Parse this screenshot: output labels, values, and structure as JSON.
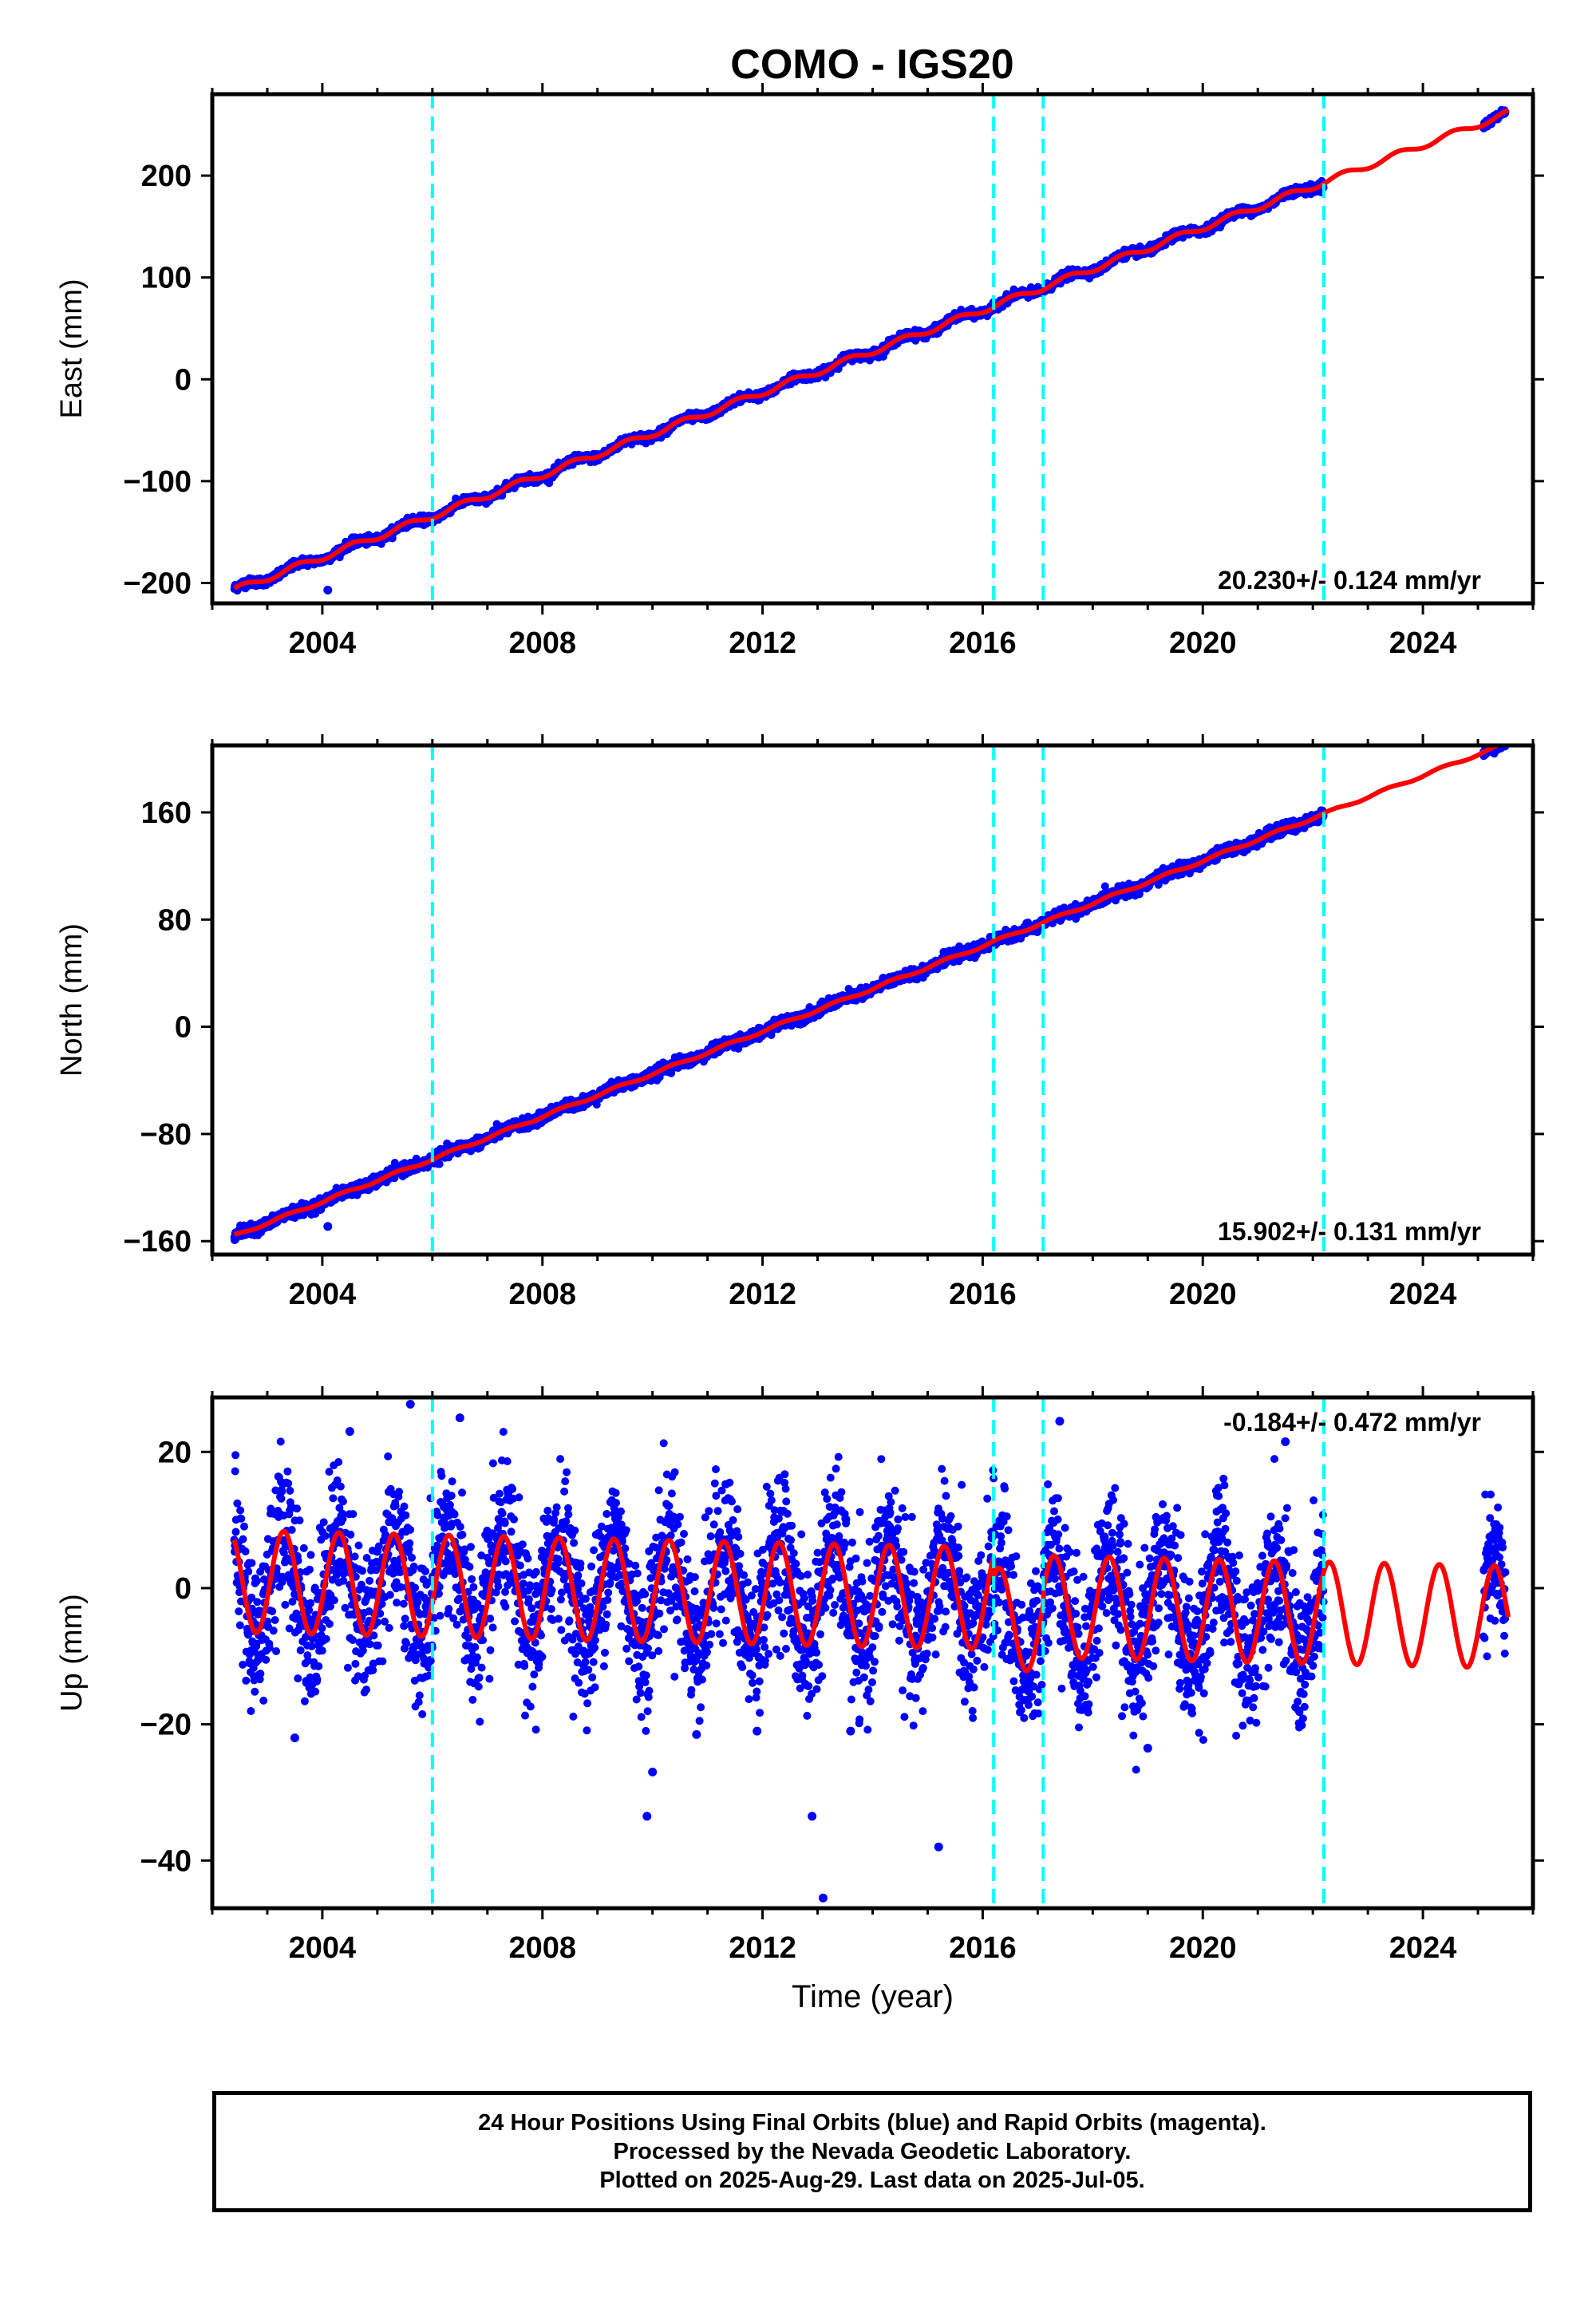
{
  "title": "COMO - IGS20",
  "colors": {
    "data": "#0000ff",
    "model": "#ff0000",
    "event_line": "#00ffff",
    "frame": "#000000"
  },
  "chart_data": [
    {
      "type": "scatter",
      "name": "east",
      "ylabel": "East (mm)",
      "xlabel": "",
      "xlim": [
        2002.0,
        2026.0
      ],
      "ylim": [
        -220,
        280
      ],
      "x_ticks": [
        2004,
        2008,
        2012,
        2016,
        2020,
        2024
      ],
      "y_ticks": [
        -200,
        -100,
        0,
        100,
        200
      ],
      "y_tick_labels": [
        "−200",
        "−100",
        "0",
        "100",
        "200"
      ],
      "event_lines": [
        2006.0,
        2016.2,
        2017.1,
        2022.2
      ],
      "rate_label": "20.230+/- 0.124 mm/yr",
      "rate_position": "bottom-right",
      "model": {
        "t0": 2002.4,
        "y0": -207,
        "rate": 20.23,
        "amp1": 3.0,
        "phase1": 0.3,
        "amp2": 0,
        "phase2": 0,
        "steps": []
      },
      "data_range": [
        2002.4,
        2022.2
      ],
      "extra_data_range": [
        2025.1,
        2025.5
      ],
      "noise": 2.0,
      "outliers": [
        {
          "x": 2004.1,
          "y": -207
        }
      ]
    },
    {
      "type": "scatter",
      "name": "north",
      "ylabel": "North (mm)",
      "xlabel": "",
      "xlim": [
        2002.0,
        2026.0
      ],
      "ylim": [
        -170,
        210
      ],
      "x_ticks": [
        2004,
        2008,
        2012,
        2016,
        2020,
        2024
      ],
      "y_ticks": [
        -160,
        -80,
        0,
        80,
        160
      ],
      "y_tick_labels": [
        "−160",
        "−80",
        "0",
        "80",
        "160"
      ],
      "event_lines": [
        2006.0,
        2016.2,
        2017.1,
        2022.2
      ],
      "rate_label": "15.902+/- 0.131 mm/yr",
      "rate_position": "bottom-right",
      "model": {
        "t0": 2002.4,
        "y0": -156,
        "rate": 15.9,
        "amp1": 1.0,
        "phase1": 0.1,
        "amp2": 0,
        "phase2": 0,
        "steps": []
      },
      "data_range": [
        2002.4,
        2022.2
      ],
      "extra_data_range": [
        2025.1,
        2025.5
      ],
      "noise": 2.0,
      "outliers": [
        {
          "x": 2004.1,
          "y": -149
        }
      ]
    },
    {
      "type": "scatter",
      "name": "up",
      "ylabel": "Up (mm)",
      "xlabel": "Time (year)",
      "xlim": [
        2002.0,
        2026.0
      ],
      "ylim": [
        -47,
        28
      ],
      "x_ticks": [
        2004,
        2008,
        2012,
        2016,
        2020,
        2024
      ],
      "y_ticks": [
        -40,
        -20,
        0,
        20
      ],
      "y_tick_labels": [
        "−40",
        "−20",
        "0",
        "20"
      ],
      "event_lines": [
        2006.0,
        2016.2,
        2017.1,
        2022.2
      ],
      "rate_label": "-0.184+/- 0.472 mm/yr",
      "rate_position": "top-right",
      "model": {
        "t0": 2002.4,
        "y0": 1.0,
        "rate": -0.184,
        "amp1": 7.5,
        "phase1": 0.05,
        "amp2": 0,
        "phase2": 0,
        "steps": [
          {
            "x": 2016.2,
            "dy": -3
          },
          {
            "x": 2017.1,
            "dy": 2
          }
        ]
      },
      "data_range": [
        2002.4,
        2022.2
      ],
      "extra_data_range": [
        2025.1,
        2025.5
      ],
      "noise": 5.5,
      "outliers": [
        {
          "x": 2005.6,
          "y": 27
        },
        {
          "x": 2006.5,
          "y": 25
        },
        {
          "x": 2004.5,
          "y": 23
        },
        {
          "x": 2010.0,
          "y": -27
        },
        {
          "x": 2009.9,
          "y": -33.5
        },
        {
          "x": 2010.8,
          "y": -21.5
        },
        {
          "x": 2011.9,
          "y": -21
        },
        {
          "x": 2012.9,
          "y": -33.5
        },
        {
          "x": 2013.1,
          "y": -45.5
        },
        {
          "x": 2015.2,
          "y": -38
        },
        {
          "x": 2019.0,
          "y": -23.5
        },
        {
          "x": 2013.6,
          "y": -21
        },
        {
          "x": 2003.5,
          "y": -22
        },
        {
          "x": 2017.4,
          "y": 24.5
        },
        {
          "x": 2021.5,
          "y": 21.5
        }
      ]
    }
  ],
  "footer": {
    "line1": "24 Hour Positions Using Final Orbits (blue) and Rapid Orbits (magenta).",
    "line2": "Processed by the Nevada Geodetic Laboratory.",
    "line3": "Plotted on 2025-Aug-29. Last data on 2025-Jul-05."
  }
}
